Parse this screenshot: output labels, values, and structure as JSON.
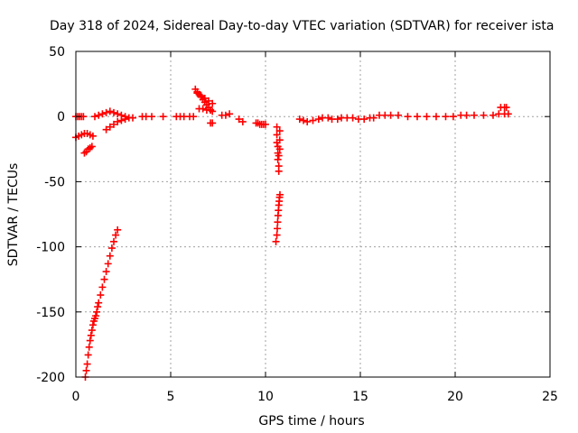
{
  "chart_data": {
    "type": "scatter",
    "title": "Day 318 of 2024, Sidereal Day-to-day VTEC variation (SDTVAR) for receiver ista",
    "xlabel": "GPS time / hours",
    "ylabel": "SDTVAR / TECUs",
    "xlim": [
      0,
      25
    ],
    "ylim": [
      -200,
      50
    ],
    "x_ticks": [
      0,
      5,
      10,
      15,
      20,
      25
    ],
    "y_ticks": [
      -200,
      -150,
      -100,
      -50,
      0,
      50
    ],
    "x_tick_labels": [
      "0",
      "5",
      "10",
      "15",
      "20",
      "25"
    ],
    "y_tick_labels": [
      "-200",
      "-150",
      "-100",
      "-50",
      "0",
      "50"
    ],
    "grid": true,
    "marker": "+",
    "marker_color": "#ff0000",
    "segments": [
      {
        "name": "early-flat",
        "x": [
          0.0,
          0.1,
          0.2,
          0.3,
          0.4
        ],
        "y": [
          0,
          0,
          0,
          0,
          0
        ]
      },
      {
        "name": "early-dip",
        "x": [
          0.0,
          0.15,
          0.3,
          0.45,
          0.6,
          0.75,
          0.9
        ],
        "y": [
          -16,
          -15,
          -14,
          -13,
          -13,
          -14,
          -15
        ]
      },
      {
        "name": "dip-low",
        "x": [
          0.45,
          0.55,
          0.65,
          0.75,
          0.85
        ],
        "y": [
          -28,
          -27,
          -25,
          -24,
          -23
        ]
      },
      {
        "name": "rising-arc",
        "x": [
          0.5,
          0.55,
          0.6,
          0.65,
          0.7,
          0.75,
          0.8,
          0.85,
          0.9,
          0.95,
          1.0,
          1.05,
          1.1,
          1.15,
          1.2,
          1.3,
          1.4,
          1.5,
          1.6,
          1.7,
          1.8,
          1.9,
          2.0,
          2.1,
          2.2
        ],
        "y": [
          -200,
          -195,
          -190,
          -183,
          -177,
          -172,
          -168,
          -164,
          -160,
          -157,
          -155,
          -153,
          -150,
          -146,
          -143,
          -137,
          -131,
          -125,
          -119,
          -113,
          -107,
          -101,
          -96,
          -91,
          -87
        ]
      },
      {
        "name": "cluster-1",
        "x": [
          1.0,
          1.2,
          1.4,
          1.6,
          1.8,
          2.0,
          2.2,
          2.4,
          2.6,
          2.8,
          3.0
        ],
        "y": [
          0,
          1,
          2,
          3,
          4,
          3,
          2,
          1,
          0,
          -1,
          -1
        ]
      },
      {
        "name": "cluster-1-low",
        "x": [
          1.6,
          1.8,
          2.0,
          2.2,
          2.4,
          2.6
        ],
        "y": [
          -10,
          -8,
          -6,
          -4,
          -3,
          -2
        ]
      },
      {
        "name": "sparse-mid",
        "x": [
          3.5,
          3.7,
          4.0,
          4.6
        ],
        "y": [
          0,
          0,
          0,
          0
        ]
      },
      {
        "name": "seg-5to6",
        "x": [
          5.3,
          5.5,
          5.7,
          6.0,
          6.2
        ],
        "y": [
          0,
          0,
          0,
          0,
          0
        ]
      },
      {
        "name": "bump-6",
        "x": [
          6.3,
          6.4,
          6.5,
          6.6,
          6.7,
          6.8,
          6.9,
          7.0,
          7.1,
          7.2
        ],
        "y": [
          21,
          19,
          17,
          15,
          13,
          11,
          9,
          7,
          5,
          4
        ]
      },
      {
        "name": "bump-6b",
        "x": [
          6.4,
          6.6,
          6.8,
          7.0,
          7.2
        ],
        "y": [
          18,
          16,
          14,
          12,
          10
        ]
      },
      {
        "name": "bump-6c",
        "x": [
          6.5,
          6.7,
          6.9,
          7.1
        ],
        "y": [
          6,
          6,
          5,
          5
        ]
      },
      {
        "name": "point-7",
        "x": [
          7.1,
          7.2
        ],
        "y": [
          -5,
          -5
        ]
      },
      {
        "name": "seg-8",
        "x": [
          7.7,
          7.9,
          8.1
        ],
        "y": [
          1,
          1,
          2
        ]
      },
      {
        "name": "seg-9",
        "x": [
          8.6,
          8.8
        ],
        "y": [
          -2,
          -4
        ]
      },
      {
        "name": "seg-9b",
        "x": [
          9.5,
          9.6,
          9.7,
          9.8,
          9.9,
          10.0
        ],
        "y": [
          -5,
          -5,
          -6,
          -6,
          -6,
          -6
        ]
      },
      {
        "name": "drop-a",
        "x": [
          10.6,
          10.6,
          10.6,
          10.65,
          10.65,
          10.65,
          10.7,
          10.7,
          10.7,
          10.75,
          10.75,
          10.75
        ],
        "y": [
          -8,
          -14,
          -20,
          -23,
          -28,
          -33,
          -38,
          -42,
          -30,
          -25,
          -18,
          -11
        ]
      },
      {
        "name": "drop-b",
        "x": [
          10.55,
          10.6,
          10.62,
          10.64,
          10.66,
          10.68,
          10.7,
          10.72,
          10.74,
          10.76
        ],
        "y": [
          -96,
          -91,
          -86,
          -81,
          -76,
          -72,
          -68,
          -65,
          -62,
          -60
        ]
      },
      {
        "name": "seg-12to15",
        "x": [
          11.8,
          12.0,
          12.2,
          12.5,
          12.8,
          13.0,
          13.3,
          13.5,
          13.8,
          14.0,
          14.3,
          14.6,
          14.9,
          15.2,
          15.5,
          15.7
        ],
        "y": [
          -2,
          -3,
          -4,
          -3,
          -2,
          -1,
          -1,
          -2,
          -2,
          -1,
          -1,
          -1,
          -2,
          -2,
          -1,
          -1
        ]
      },
      {
        "name": "seg-16to20",
        "x": [
          16.0,
          16.3,
          16.6,
          17.0,
          17.5,
          18.0,
          18.5,
          19.0,
          19.5,
          19.9
        ],
        "y": [
          1,
          1,
          1,
          1,
          0,
          0,
          0,
          0,
          0,
          0
        ]
      },
      {
        "name": "seg-20to23",
        "x": [
          20.3,
          20.6,
          21.0,
          21.5,
          22.0,
          22.3,
          22.6,
          22.8
        ],
        "y": [
          1,
          1,
          1,
          1,
          1,
          2,
          2,
          2
        ]
      },
      {
        "name": "end-points",
        "x": [
          22.4,
          22.6,
          22.7
        ],
        "y": [
          7,
          7,
          7
        ]
      }
    ]
  }
}
